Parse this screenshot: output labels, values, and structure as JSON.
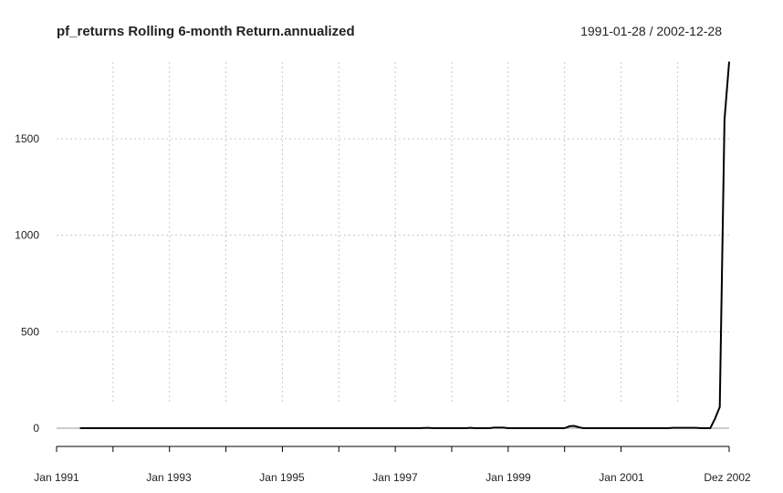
{
  "chart_data": {
    "type": "line",
    "title": "pf_returns Rolling 6-month Return.annualized",
    "date_range": "1991-01-28 / 2002-12-28",
    "xlabel": "",
    "ylabel": "",
    "x_ticks": [
      "Jan 1991",
      "Jan 1993",
      "Jan 1995",
      "Jan 1997",
      "Jan 1999",
      "Jan 2001",
      "Dez 2002"
    ],
    "x_range": [
      "1991-01-28",
      "2002-12-28"
    ],
    "y_ticks": [
      0,
      500,
      1000,
      1500
    ],
    "ylim": [
      -30,
      1900
    ],
    "grid": true,
    "series": [
      {
        "name": "",
        "color": "#000000",
        "points": [
          [
            "1991-06-28",
            0
          ],
          [
            "1992-06-28",
            0
          ],
          [
            "1993-06-28",
            0
          ],
          [
            "1994-06-28",
            0
          ],
          [
            "1995-06-28",
            0
          ],
          [
            "1996-06-28",
            0
          ],
          [
            "1997-06-28",
            0
          ],
          [
            "1997-08-28",
            2
          ],
          [
            "1997-09-28",
            0
          ],
          [
            "1998-04-28",
            0
          ],
          [
            "1998-05-28",
            2
          ],
          [
            "1998-06-28",
            0
          ],
          [
            "1998-09-28",
            0
          ],
          [
            "1998-10-28",
            3
          ],
          [
            "1998-12-28",
            3
          ],
          [
            "1999-01-28",
            0
          ],
          [
            "2000-01-28",
            0
          ],
          [
            "2000-02-28",
            10
          ],
          [
            "2000-03-28",
            12
          ],
          [
            "2000-04-28",
            5
          ],
          [
            "2000-05-28",
            0
          ],
          [
            "2001-11-28",
            0
          ],
          [
            "2001-12-28",
            2
          ],
          [
            "2002-05-28",
            2
          ],
          [
            "2002-06-28",
            0
          ],
          [
            "2002-08-28",
            0
          ],
          [
            "2002-09-28",
            50
          ],
          [
            "2002-10-28",
            110
          ],
          [
            "2002-11-28",
            1600
          ],
          [
            "2002-12-28",
            1900
          ]
        ]
      }
    ]
  }
}
